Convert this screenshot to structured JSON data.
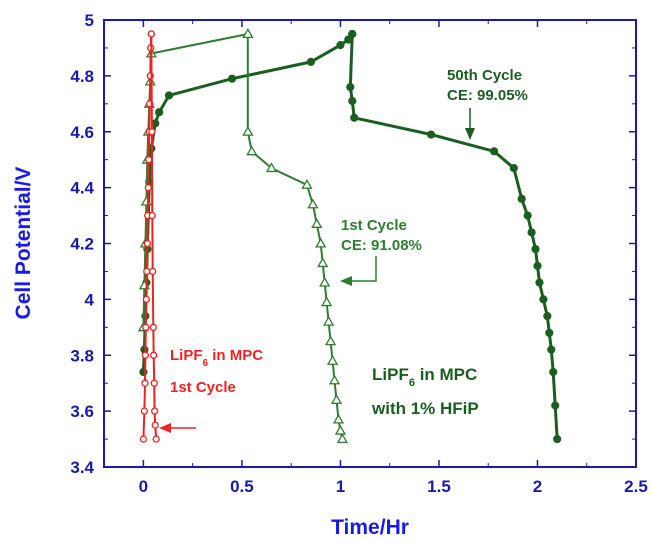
{
  "chart_data": {
    "type": "scatter",
    "title": "",
    "xlabel": "Time/Hr",
    "ylabel": "Cell Potential/V",
    "xlim": [
      -0.2,
      2.5
    ],
    "ylim": [
      3.4,
      5.0
    ],
    "xticks": [
      "0",
      "0.5",
      "1",
      "1.5",
      "2",
      "2.5"
    ],
    "yticks": [
      "3.4",
      "3.6",
      "3.8",
      "4",
      "4.2",
      "4.4",
      "4.6",
      "4.8",
      "5"
    ],
    "grid": false,
    "colors": {
      "axis": "#1a1aa6",
      "label": "#1a1ae6",
      "red": "#ee2222",
      "green": "#2e7d32",
      "dark_green": "#1b5e20"
    },
    "series": [
      {
        "key": "lipf6_1st_charge",
        "marker": "open-circle",
        "color": "#ee2222",
        "x": [
          0.0,
          0.005,
          0.008,
          0.01,
          0.012,
          0.015,
          0.017,
          0.02,
          0.022,
          0.025,
          0.027,
          0.03,
          0.032,
          0.035,
          0.037,
          0.04
        ],
        "y": [
          3.5,
          3.6,
          3.7,
          3.8,
          3.9,
          4.0,
          4.1,
          4.2,
          4.3,
          4.4,
          4.5,
          4.6,
          4.7,
          4.8,
          4.9,
          4.95
        ]
      },
      {
        "key": "lipf6_1st_discharge",
        "marker": "open-circle",
        "color": "#ee2222",
        "x": [
          0.04,
          0.043,
          0.045,
          0.047,
          0.05,
          0.052,
          0.055,
          0.057,
          0.06,
          0.065
        ],
        "y": [
          4.95,
          4.6,
          4.3,
          4.1,
          3.9,
          3.8,
          3.7,
          3.6,
          3.55,
          3.5
        ]
      },
      {
        "key": "hfip_1st_charge",
        "marker": "open-triangle",
        "color": "#2e7d32",
        "x": [
          0.0,
          0.005,
          0.01,
          0.015,
          0.02,
          0.025,
          0.03,
          0.035,
          0.04,
          0.53
        ],
        "y": [
          3.9,
          4.05,
          4.2,
          4.35,
          4.5,
          4.6,
          4.7,
          4.78,
          4.88,
          4.95
        ]
      },
      {
        "key": "hfip_1st_discharge",
        "marker": "open-triangle",
        "color": "#2e7d32",
        "x": [
          0.53,
          0.53,
          0.55,
          0.65,
          0.83,
          0.86,
          0.88,
          0.9,
          0.91,
          0.92,
          0.93,
          0.94,
          0.95,
          0.96,
          0.97,
          0.98,
          0.99,
          1.0,
          1.01
        ],
        "y": [
          4.95,
          4.6,
          4.53,
          4.47,
          4.41,
          4.34,
          4.27,
          4.2,
          4.13,
          4.06,
          3.99,
          3.92,
          3.85,
          3.78,
          3.71,
          3.64,
          3.57,
          3.53,
          3.5
        ]
      },
      {
        "key": "hfip_50th_charge",
        "marker": "filled-circle",
        "color": "#1b5e20",
        "x": [
          0.0,
          0.005,
          0.01,
          0.015,
          0.02,
          0.025,
          0.03,
          0.04,
          0.06,
          0.08,
          0.13,
          0.45,
          0.85,
          1.0,
          1.04,
          1.06
        ],
        "y": [
          3.74,
          3.82,
          3.94,
          4.06,
          4.18,
          4.3,
          4.42,
          4.54,
          4.63,
          4.67,
          4.73,
          4.79,
          4.85,
          4.91,
          4.93,
          4.95
        ]
      },
      {
        "key": "hfip_50th_discharge",
        "marker": "filled-circle",
        "color": "#1b5e20",
        "x": [
          1.06,
          1.05,
          1.06,
          1.07,
          1.46,
          1.78,
          1.88,
          1.92,
          1.95,
          1.97,
          1.99,
          2.0,
          2.01,
          2.03,
          2.05,
          2.06,
          2.07,
          2.08,
          2.09,
          2.1
        ],
        "y": [
          4.95,
          4.76,
          4.71,
          4.65,
          4.59,
          4.53,
          4.47,
          4.36,
          4.3,
          4.24,
          4.18,
          4.12,
          4.06,
          4.0,
          3.94,
          3.88,
          3.82,
          3.74,
          3.62,
          3.5
        ]
      }
    ],
    "annotations": [
      {
        "lines": [
          "50th Cycle",
          "CE: 99.05%"
        ],
        "color": "#1b5e20"
      },
      {
        "lines": [
          "1st Cycle",
          "CE: 91.08%"
        ],
        "color": "#2e7d32"
      },
      {
        "lines": [
          "LiPF",
          "6",
          " in MPC",
          "1st Cycle"
        ],
        "color": "#ee2222"
      },
      {
        "lines": [
          "LiPF",
          "6",
          " in MPC",
          "with 1% HFiP"
        ],
        "color": "#1b5e20"
      }
    ]
  }
}
